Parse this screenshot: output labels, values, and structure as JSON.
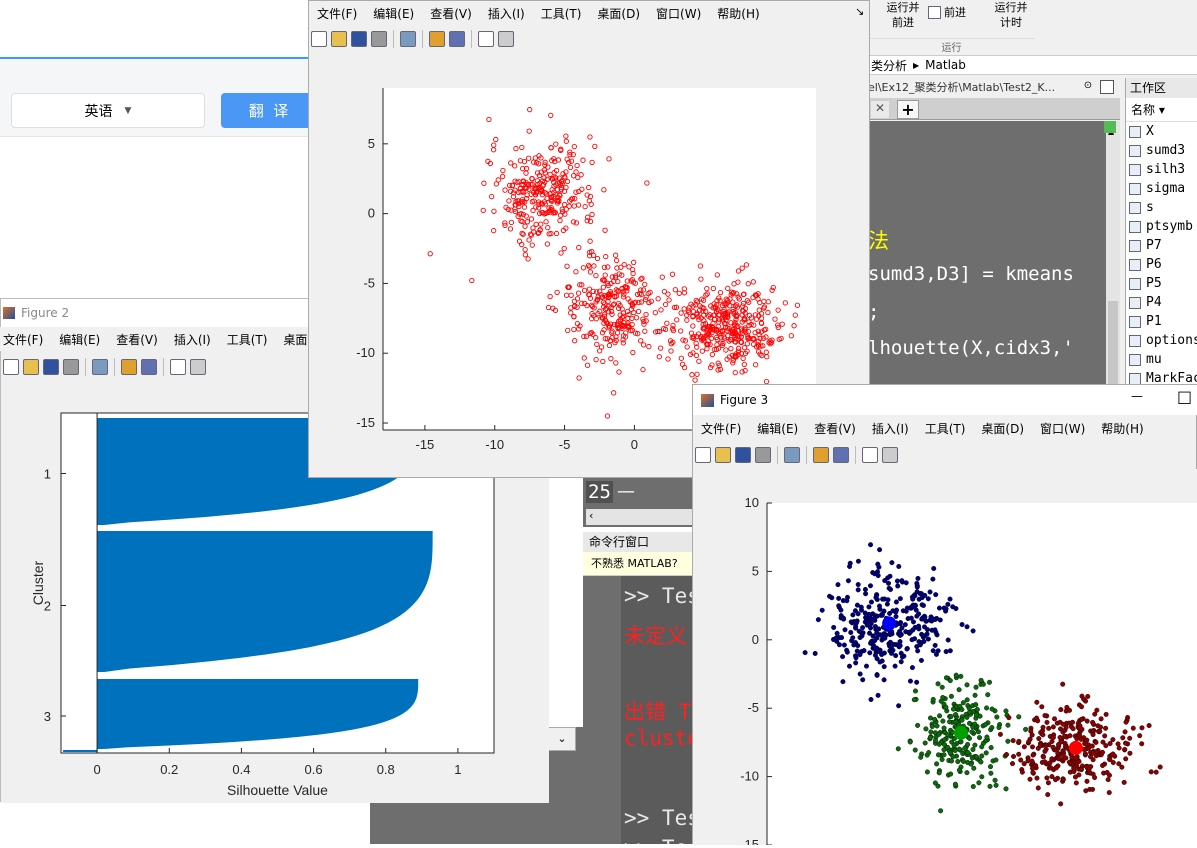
{
  "translator": {
    "language": "英语",
    "translate_button": "翻  译"
  },
  "matlab": {
    "ribbon": {
      "run_advance": "运行并\n前进",
      "advance": "前进",
      "run_time": "运行并\n计时",
      "section": "运行"
    },
    "breadcrumb": {
      "part1": "类分析",
      "part2": "Matlab"
    },
    "editor_path": "el\\Ex12_聚类分析\\Matlab\\Test2_K...",
    "workspace": {
      "title": "工作区",
      "name_header": "名称 ▾",
      "vars": [
        "X",
        "sumd3",
        "silh3",
        "sigma",
        "s",
        "ptsymb",
        "P7",
        "P6",
        "P5",
        "P4",
        "P1",
        "options",
        "mu",
        "MarkFac"
      ]
    },
    "code": [
      {
        "text": "法",
        "color": "#ffff00"
      },
      {
        "text": "sumd3,D3] = kmeans",
        "color": "#ffffff"
      },
      {
        "text": ";",
        "color": "#ffffff"
      },
      {
        "text": "lhouette(X,cidx3,'",
        "color": "#ffffff"
      }
    ],
    "code_line": {
      "num": "25",
      "dash": "—"
    },
    "command": {
      "title": "命令行窗口",
      "hint": "不熟悉 MATLAB?",
      "lines": [
        {
          "text": ">> Tes",
          "color": "#e8e8e8"
        },
        {
          "text": "未定义",
          "color": "#ff2020"
        },
        {
          "text": "出错 T",
          "color": "#ff2020"
        },
        {
          "text": "cluste",
          "color": "#ff2020"
        },
        {
          "text": ">> Tes",
          "color": "#e8e8e8"
        },
        {
          "text": ">> Te",
          "color": "#e8e8e8"
        }
      ]
    }
  },
  "menu_items": [
    "文件(F)",
    "编辑(E)",
    "查看(V)",
    "插入(I)",
    "工具(T)",
    "桌面(D)",
    "窗口(W)",
    "帮助(H)"
  ],
  "figure1": {
    "corner": "↘"
  },
  "figure2": {
    "title": "Figure 2",
    "menu_visible": [
      "文件(F)",
      "编辑(E)",
      "查看(V)",
      "插入(I)",
      "工具(T)",
      "桌面(D"
    ]
  },
  "figure3": {
    "title": "Figure 3",
    "minimize": "—",
    "maximize": "□"
  },
  "colors": {
    "bar": "#0072bd",
    "red": "#ff0000",
    "c1": "#00007f",
    "c2": "#0a6b0a",
    "c3": "#8b0000"
  },
  "chart_data": [
    {
      "type": "scatter",
      "title": "",
      "xlabel": "",
      "ylabel": "",
      "xlim": [
        -18,
        13
      ],
      "ylim": [
        -15.5,
        9
      ],
      "x_ticks": [
        "-15",
        "-10",
        "-5",
        "0"
      ],
      "y_ticks": [
        "5",
        "0",
        "-5",
        "-10",
        "-15"
      ],
      "series": [
        {
          "color": "red",
          "marker": "open-circle",
          "clusters": [
            {
              "center": [
                -6.5,
                1.5
              ],
              "spread": [
                1.9,
                1.8
              ],
              "count": 300
            },
            {
              "center": [
                -1.5,
                -6.8
              ],
              "spread": [
                1.9,
                1.9
              ],
              "count": 280
            },
            {
              "center": [
                6.5,
                -8
              ],
              "spread": [
                1.9,
                1.5
              ],
              "count": 380
            }
          ]
        }
      ]
    },
    {
      "type": "bar",
      "orientation": "horizontal",
      "title": "",
      "xlabel": "Silhouette Value",
      "ylabel": "Cluster",
      "x_ticks": [
        "0",
        "0.2",
        "0.4",
        "0.6",
        "0.8",
        "1"
      ],
      "y_ticks": [
        "1",
        "2",
        "3"
      ],
      "xlim": [
        -0.1,
        1.1
      ],
      "clusters": [
        {
          "label": "1",
          "max": 0.9
        },
        {
          "label": "2",
          "max": 0.93
        },
        {
          "label": "3",
          "max": 0.89
        }
      ]
    },
    {
      "type": "scatter",
      "title": "",
      "xlabel": "",
      "ylabel": "",
      "ylim": [
        -15,
        10
      ],
      "y_ticks": [
        "10",
        "5",
        "0",
        "-5",
        "-10",
        "-15"
      ],
      "series": [
        {
          "color": "c1",
          "centroid": [
            -6.5,
            1.2
          ],
          "spread": [
            2,
            1.9
          ],
          "count": 330
        },
        {
          "color": "c2",
          "centroid": [
            -1.5,
            -6.8
          ],
          "spread": [
            1.7,
            1.9
          ],
          "count": 240
        },
        {
          "color": "c3",
          "centroid": [
            6.5,
            -7.9
          ],
          "spread": [
            2,
            1.4
          ],
          "count": 300
        }
      ]
    }
  ]
}
